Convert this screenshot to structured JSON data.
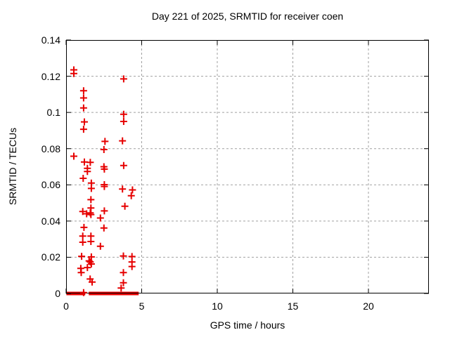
{
  "chart_data": {
    "type": "scatter",
    "title": "Day 221 of 2025, SRMTID for receiver coen",
    "xlabel": "GPS time / hours",
    "ylabel": "SRMTID / TECUs",
    "xlim": [
      0,
      24
    ],
    "ylim": [
      0,
      0.14
    ],
    "xticks": [
      0,
      5,
      10,
      15,
      20
    ],
    "xtick_labels": [
      "0",
      "5",
      "10",
      "15",
      "20"
    ],
    "yticks": [
      0,
      0.02,
      0.04,
      0.06,
      0.08,
      0.1,
      0.12,
      0.14
    ],
    "ytick_labels": [
      "0",
      "0.02",
      "0.04",
      "0.06",
      "0.08",
      "0.1",
      "0.12",
      "0.14"
    ],
    "grid": true,
    "legend": "none",
    "marker": "plus",
    "marker_color": "#e60000",
    "grid_color": "#a0a0a0",
    "border_color": "#000000",
    "points": [
      [
        0.51,
        0.1235
      ],
      [
        0.51,
        0.1215
      ],
      [
        3.81,
        0.1185
      ],
      [
        1.16,
        0.112
      ],
      [
        1.16,
        0.108
      ],
      [
        1.16,
        0.1025
      ],
      [
        3.81,
        0.099
      ],
      [
        3.81,
        0.095
      ],
      [
        1.21,
        0.0948
      ],
      [
        1.16,
        0.0907
      ],
      [
        2.57,
        0.084
      ],
      [
        3.73,
        0.0843
      ],
      [
        2.5,
        0.0795
      ],
      [
        0.51,
        0.0758
      ],
      [
        1.21,
        0.0726
      ],
      [
        1.6,
        0.0724
      ],
      [
        3.81,
        0.0707
      ],
      [
        2.5,
        0.07
      ],
      [
        2.53,
        0.0687
      ],
      [
        1.41,
        0.0691
      ],
      [
        1.41,
        0.0674
      ],
      [
        1.13,
        0.0636
      ],
      [
        1.67,
        0.061
      ],
      [
        2.53,
        0.0601
      ],
      [
        2.53,
        0.0591
      ],
      [
        1.67,
        0.058
      ],
      [
        3.73,
        0.0577
      ],
      [
        4.39,
        0.0572
      ],
      [
        4.31,
        0.054
      ],
      [
        1.64,
        0.0518
      ],
      [
        3.89,
        0.0482
      ],
      [
        1.64,
        0.0472
      ],
      [
        2.53,
        0.0456
      ],
      [
        1.1,
        0.0453
      ],
      [
        1.6,
        0.0445
      ],
      [
        1.36,
        0.044
      ],
      [
        1.64,
        0.0436
      ],
      [
        2.27,
        0.0417
      ],
      [
        1.18,
        0.0365
      ],
      [
        2.5,
        0.0362
      ],
      [
        1.64,
        0.0317
      ],
      [
        1.1,
        0.0317
      ],
      [
        1.64,
        0.0287
      ],
      [
        1.1,
        0.0283
      ],
      [
        2.27,
        0.0261
      ],
      [
        1.03,
        0.0205
      ],
      [
        1.67,
        0.0202
      ],
      [
        3.79,
        0.0207
      ],
      [
        4.36,
        0.0204
      ],
      [
        1.6,
        0.0174
      ],
      [
        4.36,
        0.0174
      ],
      [
        1.52,
        0.018
      ],
      [
        1.67,
        0.0163
      ],
      [
        4.36,
        0.0149
      ],
      [
        0.97,
        0.0139
      ],
      [
        1.41,
        0.0143
      ],
      [
        1.0,
        0.0115
      ],
      [
        3.79,
        0.0115
      ],
      [
        1.59,
        0.008
      ],
      [
        1.72,
        0.0063
      ],
      [
        3.79,
        0.0059
      ],
      [
        3.64,
        0.003
      ],
      [
        1.16,
        0.0005
      ]
    ],
    "zero_band_segments": [
      [
        0.02,
        1.27
      ],
      [
        1.5,
        4.8
      ]
    ],
    "zero_band_value": 0
  }
}
